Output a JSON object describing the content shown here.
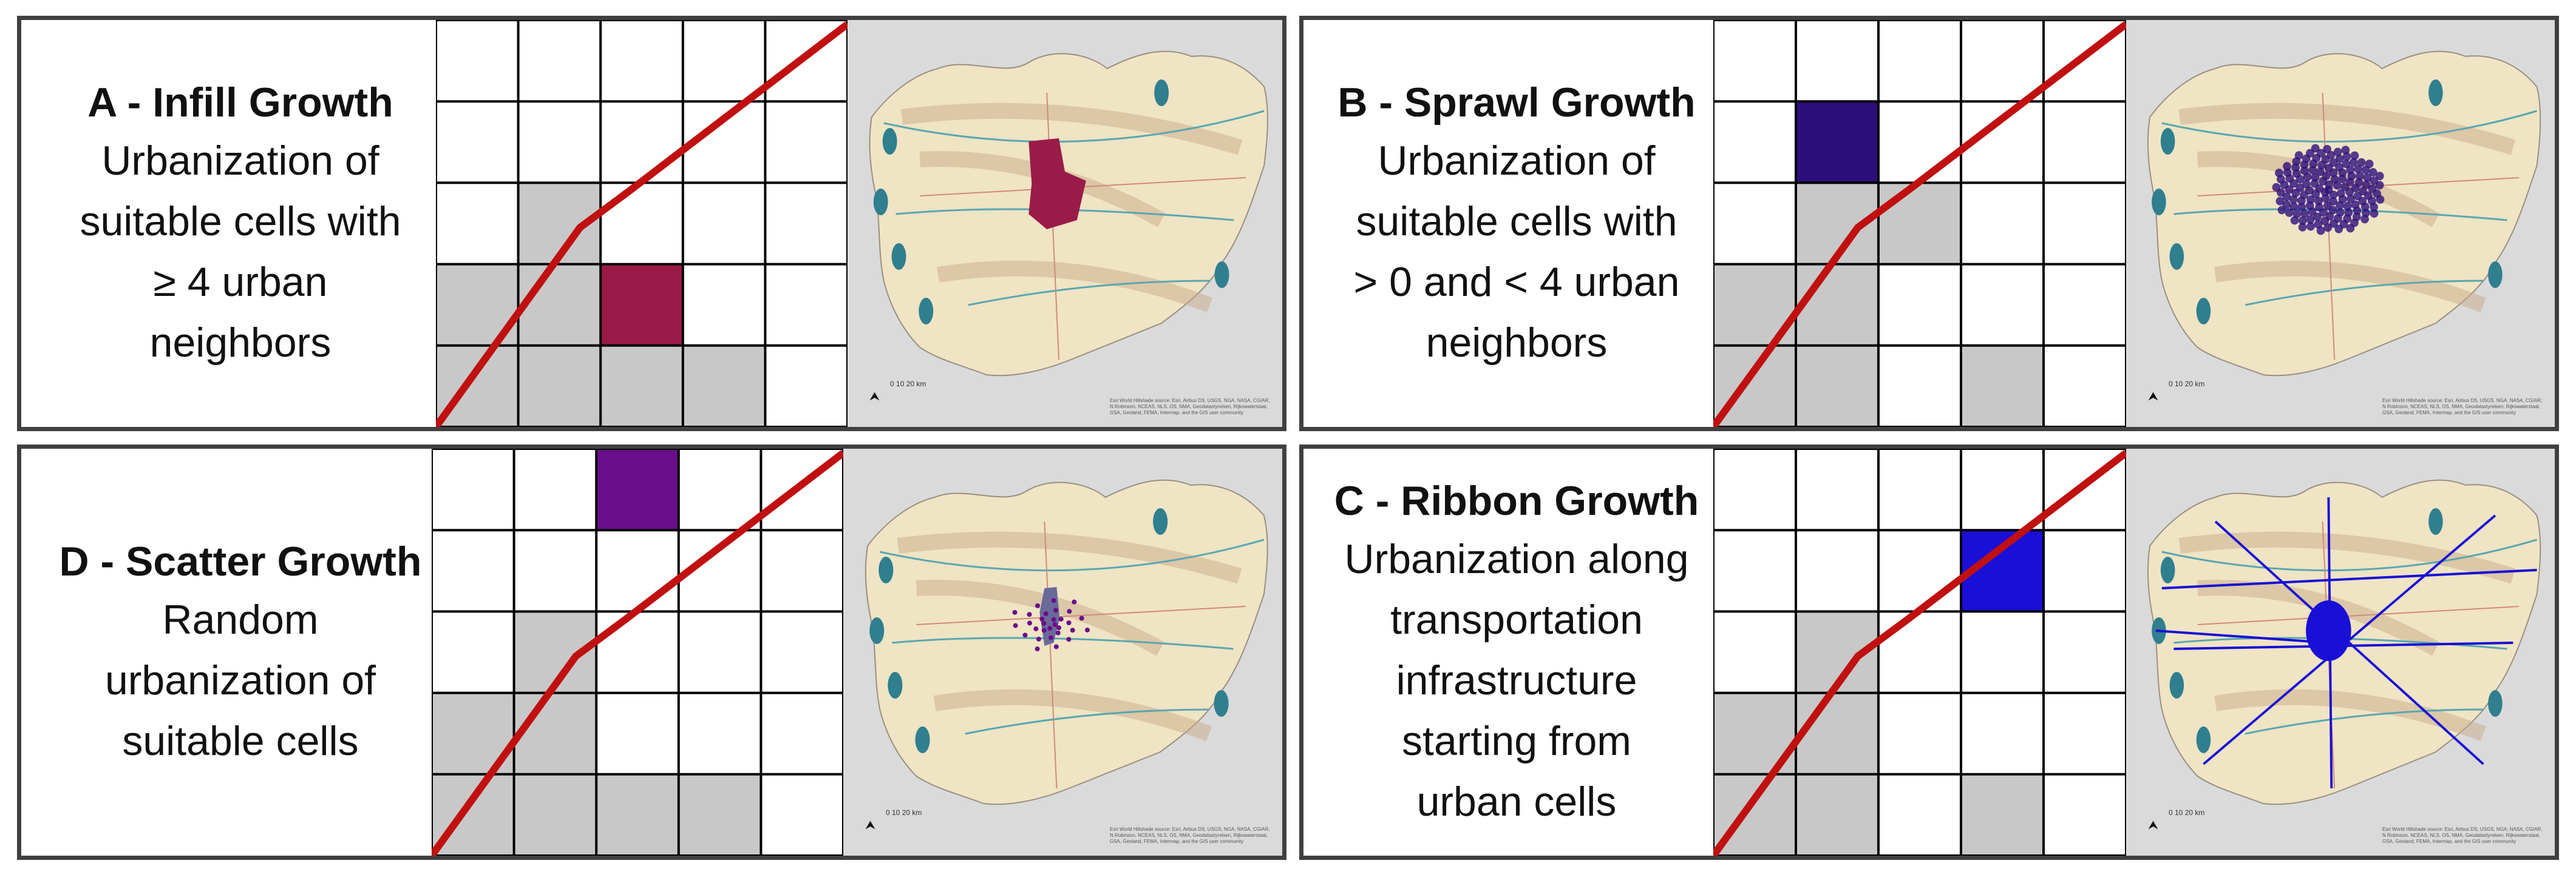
{
  "panels": {
    "a": {
      "title": "A - Infill Growth",
      "desc": [
        "Urbanization of",
        "suitable cells with",
        "≥ 4 urban",
        "neighbors"
      ],
      "color": "#9b1b48",
      "grid_colored_cell": [
        3,
        2
      ],
      "grid_gray_cells": [
        [
          2,
          1
        ],
        [
          3,
          0
        ],
        [
          3,
          1
        ],
        [
          4,
          0
        ],
        [
          4,
          1
        ],
        [
          4,
          2
        ],
        [
          4,
          3
        ]
      ]
    },
    "b": {
      "title": "B - Sprawl Growth",
      "desc": [
        "Urbanization of",
        "suitable cells with",
        "> 0 and < 4 urban",
        "neighbors"
      ],
      "color": "#2d0f7c",
      "grid_colored_cell": [
        1,
        1
      ],
      "grid_gray_cells": [
        [
          2,
          1
        ],
        [
          2,
          2
        ],
        [
          3,
          0
        ],
        [
          3,
          1
        ],
        [
          4,
          0
        ],
        [
          4,
          1
        ],
        [
          4,
          3
        ]
      ]
    },
    "d": {
      "title": "D - Scatter Growth",
      "desc": [
        "Random",
        "urbanization of",
        "suitable cells"
      ],
      "color": "#6a0e8c",
      "grid_colored_cell": [
        0,
        2
      ],
      "grid_gray_cells": [
        [
          2,
          1
        ],
        [
          3,
          0
        ],
        [
          3,
          1
        ],
        [
          4,
          0
        ],
        [
          4,
          1
        ],
        [
          4,
          2
        ],
        [
          4,
          3
        ]
      ]
    },
    "c": {
      "title": "C - Ribbon Growth",
      "desc": [
        "Urbanization along",
        "transportation",
        "infrastructure",
        "starting from",
        "urban cells"
      ],
      "color": "#1a0fd6",
      "grid_colored_cell": [
        1,
        3
      ],
      "grid_gray_cells": [
        [
          2,
          1
        ],
        [
          3,
          0
        ],
        [
          3,
          1
        ],
        [
          4,
          0
        ],
        [
          4,
          1
        ],
        [
          4,
          3
        ]
      ]
    }
  },
  "map": {
    "scale_label": "0      10      20 km",
    "credit": "Esri World Hillshade source: Esri, Airbus DS, USGS, NGA, NASA, CGIAR, N Robinson, NCEAS, NLS, OS, NMA, Geodatastyrelsen, Rijkswaterstaat, GSA, Geoland, FEMA, Intermap, and the GIS user community",
    "north": "⮝",
    "colors": {
      "land": "#efe4c4",
      "land_shade": "#d9c9a0",
      "hill": "#c9a98a",
      "water": "#2f7f8f",
      "river": "#59a7b0",
      "outside": "#dadada",
      "road": "#d08a7a"
    }
  },
  "grid": {
    "line_color": "#000000",
    "gray": "#c8c8c8",
    "red_line": "#c01010"
  }
}
